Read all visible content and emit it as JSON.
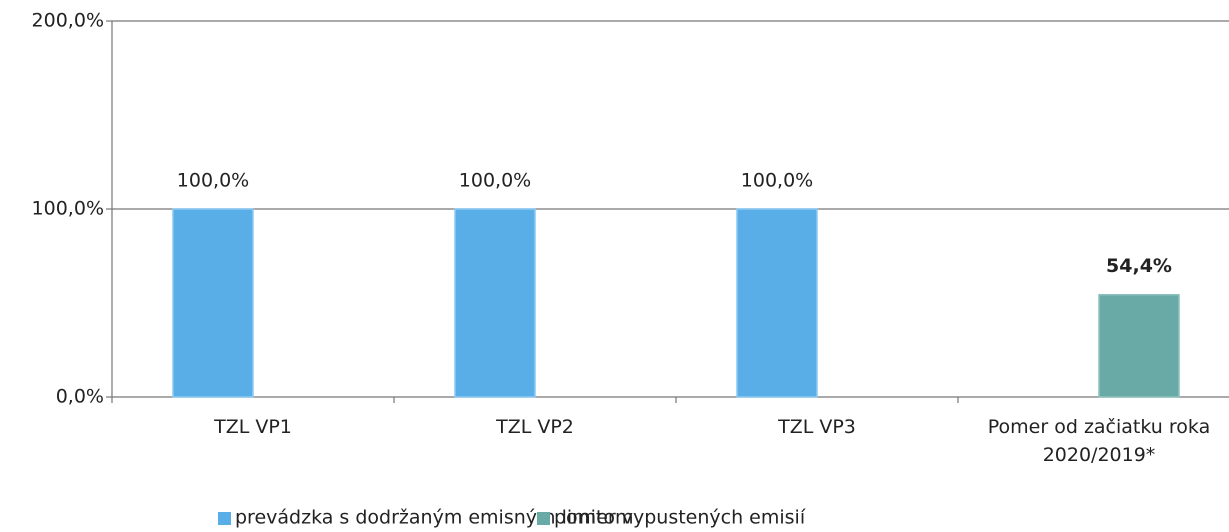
{
  "chart_data": {
    "type": "bar",
    "categories": [
      "TZL VP1",
      "TZL VP2",
      "TZL VP3",
      "Pomer  od začiatku roka\n2020/2019*"
    ],
    "series": [
      {
        "name": "prevádzka s dodržaným emisným limitom",
        "color": "#5aaee8",
        "values": [
          100,
          100,
          100,
          null
        ],
        "value_labels": [
          "100,0%",
          "100,0%",
          "100,0%",
          null
        ]
      },
      {
        "name": "pomer vypustených emisií",
        "color": "#6aaaa6",
        "values": [
          null,
          null,
          null,
          54.4
        ],
        "value_labels": [
          null,
          null,
          null,
          "54,4%"
        ]
      }
    ],
    "ylim": [
      0,
      200
    ],
    "yticks": [
      {
        "value": 0,
        "label": "0,0%"
      },
      {
        "value": 100,
        "label": "100,0%"
      },
      {
        "value": 200,
        "label": "200,0%"
      }
    ],
    "grid": true,
    "legend": "bottom"
  }
}
